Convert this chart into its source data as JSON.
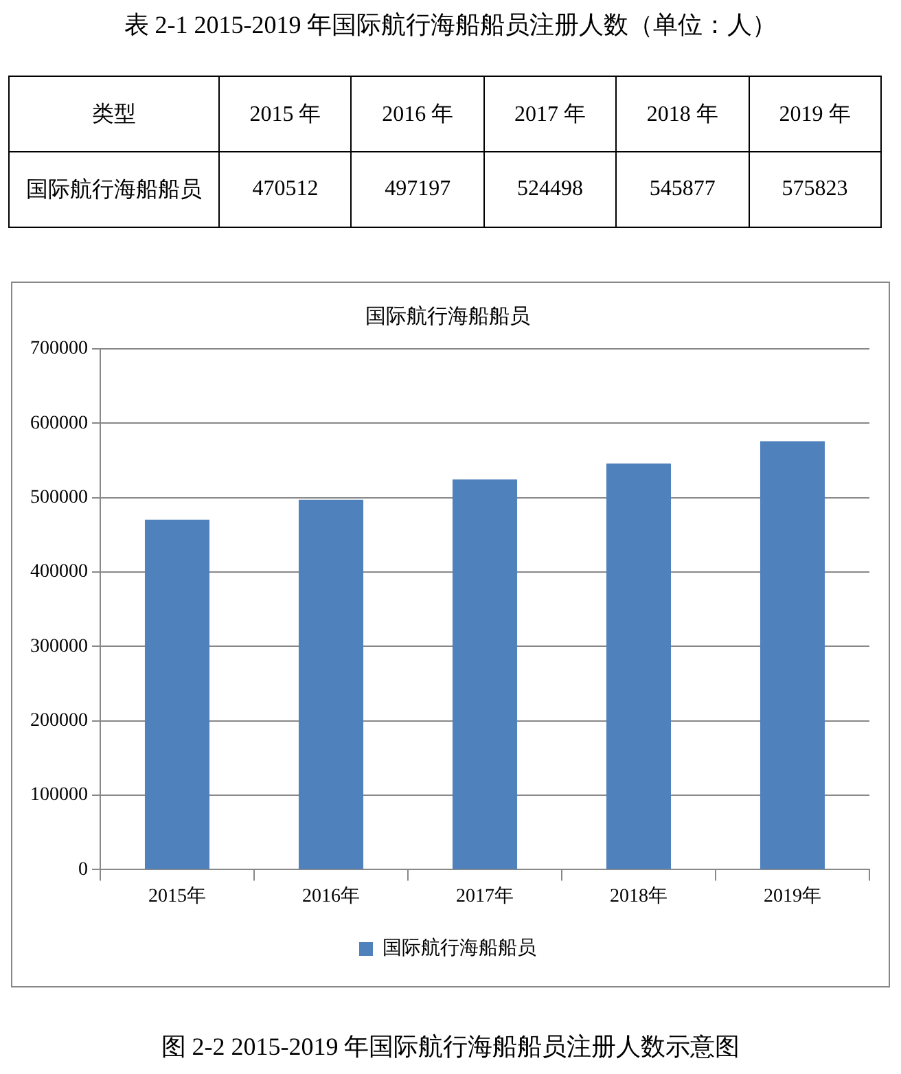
{
  "chart_data": [
    {
      "type": "heatmap",
      "title": "表 2-1 2015-2019 年国际航行海船船员注册人数（单位：人）",
      "ylabel": "类型",
      "categories": [
        "2015 年",
        "2016 年",
        "2017 年",
        "2018 年",
        "2019 年"
      ],
      "y_categories": [
        "国际航行海船船员"
      ],
      "cells": [
        [
          470512,
          497197,
          524498,
          545877,
          575823
        ]
      ],
      "data_labels": true
    },
    {
      "type": "bar",
      "title": "国际航行海船船员",
      "categories": [
        "2015年",
        "2016年",
        "2017年",
        "2018年",
        "2019年"
      ],
      "series": [
        {
          "name": "国际航行海船船员",
          "color": "#4f81bd",
          "values": [
            470512,
            497197,
            524498,
            545877,
            575823
          ]
        }
      ],
      "ylim": [
        0,
        700000
      ],
      "yticks": [
        0,
        100000,
        200000,
        300000,
        400000,
        500000,
        600000,
        700000
      ],
      "grid": "y",
      "legend": "bottom",
      "annotations": [
        "图 2-2 2015-2019 年国际航行海船船员注册人数示意图"
      ]
    }
  ]
}
